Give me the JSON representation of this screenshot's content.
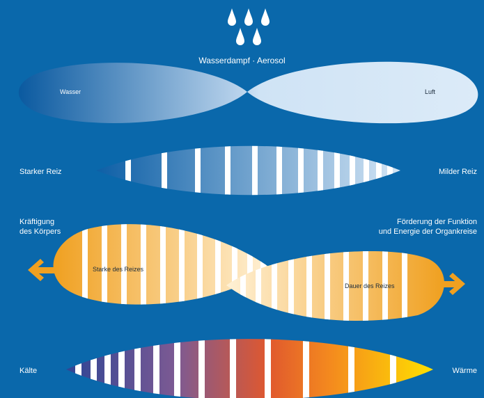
{
  "section_aerosol": {
    "title": "Wasserdampf · Aerosol",
    "left_label": "Wasser",
    "right_label": "Luft"
  },
  "section_stimulus": {
    "left_label": "Starker Reiz",
    "right_label": "Milder Reiz"
  },
  "section_duration": {
    "left_label_line1": "Kräftigung",
    "left_label_line2": "des Körpers",
    "right_label_line1": "Förderung der Funktion",
    "right_label_line2": "und Energie der Organkreise",
    "left_inner_label": "Starke des Reizes",
    "right_inner_label": "Dauer des Reizes"
  },
  "section_temperature": {
    "left_label": "Kälte",
    "right_label": "Wärme"
  },
  "colors": {
    "background": "#0a68ab",
    "water": "#0d5fa3",
    "air": "#d6e7f6",
    "orange": "#f0a020",
    "pale_orange": "#fde0a8",
    "cold": "#3a4d9c",
    "warm": "#ffd800",
    "stripe": "#ffffff"
  },
  "icons": [
    "water-drop-icon",
    "left-arrow-icon",
    "right-arrow-icon"
  ]
}
